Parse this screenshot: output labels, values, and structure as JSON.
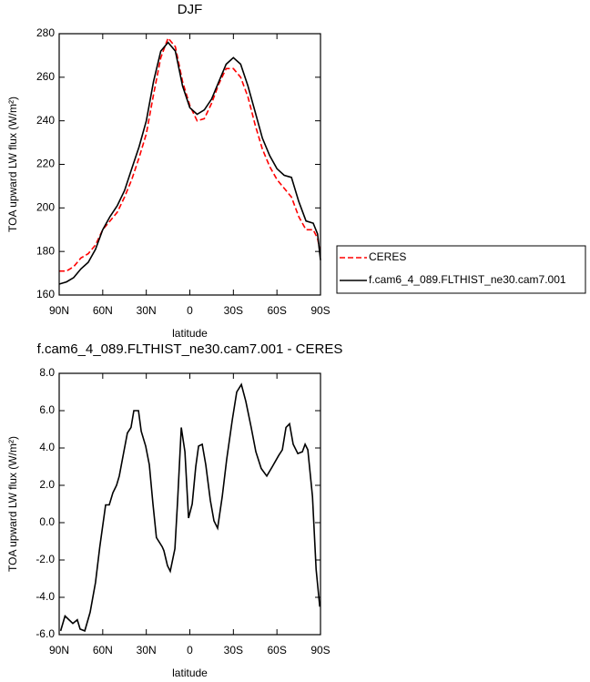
{
  "chart_data": [
    {
      "type": "line",
      "title": "DJF",
      "xlabel": "latitude",
      "ylabel": "TOA upward LW flux (W/m²)",
      "x": [
        90,
        85,
        80,
        75,
        70,
        65,
        60,
        55,
        50,
        45,
        40,
        35,
        30,
        25,
        20,
        15,
        10,
        5,
        0,
        -5,
        -10,
        -15,
        -20,
        -25,
        -30,
        -35,
        -40,
        -45,
        -50,
        -55,
        -60,
        -65,
        -70,
        -75,
        -80,
        -85,
        -88,
        -90
      ],
      "series": [
        {
          "name": "CERES",
          "color": "#ff0000",
          "dash": true,
          "values": [
            171,
            171,
            173,
            177,
            179,
            183,
            190,
            194,
            198,
            205,
            213,
            223,
            234,
            252,
            269,
            278,
            274,
            258,
            247,
            240,
            241,
            248,
            257,
            264,
            264,
            260,
            251,
            238,
            227,
            219,
            213,
            209,
            205,
            196,
            190,
            190,
            186,
            179
          ]
        },
        {
          "name": "f.cam6_4_089.FLTHIST_ne30.cam7.001",
          "color": "#000000",
          "dash": false,
          "values": [
            165,
            166,
            168,
            172,
            175,
            181,
            190,
            196,
            201,
            208,
            218,
            228,
            240,
            258,
            272,
            276,
            272,
            256,
            246,
            243,
            245,
            250,
            258,
            266,
            269,
            266,
            256,
            244,
            232,
            224,
            218,
            215,
            214,
            203,
            194,
            193,
            188,
            176
          ]
        }
      ],
      "xlim": [
        90,
        -90
      ],
      "xticks": [
        {
          "value": 90,
          "label": "90N"
        },
        {
          "value": 60,
          "label": "60N"
        },
        {
          "value": 30,
          "label": "30N"
        },
        0,
        {
          "value": -30,
          "label": "30S"
        },
        {
          "value": -60,
          "label": "60S"
        },
        {
          "value": -90,
          "label": "90S"
        }
      ],
      "ylim": [
        160,
        280
      ],
      "yticks": [
        160,
        180,
        200,
        220,
        240,
        260,
        280
      ],
      "legend": "right"
    },
    {
      "type": "line",
      "title": "f.cam6_4_089.FLTHIST_ne30.cam7.001 - CERES",
      "xlabel": "latitude",
      "ylabel": "TOA upward LW flux (W/m²)",
      "x": [
        89,
        86,
        80.6,
        77.5,
        75.6,
        72.4,
        68.7,
        65,
        62,
        58,
        55.5,
        53,
        50.5,
        48.6,
        45.5,
        43,
        40.5,
        38.6,
        35.4,
        33.5,
        30.4,
        27.9,
        25.4,
        23,
        19,
        17.9,
        15.4,
        13.5,
        10.3,
        8.4,
        5.9,
        3.4,
        0.9,
        -1.6,
        -4.1,
        -6,
        -8.5,
        -11,
        -14.1,
        -16.6,
        -19.1,
        -22.3,
        -25.4,
        -29.2,
        -32.3,
        -35.5,
        -38.6,
        -42.3,
        -45.5,
        -49.2,
        -53,
        -56.8,
        -61.2,
        -63.7,
        -66.2,
        -68.7,
        -71.2,
        -74.4,
        -77.5,
        -79.4,
        -81.3,
        -84.5,
        -87,
        -89.5
      ],
      "color": "#000000",
      "values": [
        -5.8,
        -5.0,
        -5.4,
        -5.2,
        -5.7,
        -5.8,
        -4.8,
        -3.2,
        -1.3,
        0.95,
        0.95,
        1.6,
        2.0,
        2.5,
        3.8,
        4.8,
        5.1,
        6.0,
        6.0,
        4.9,
        4.1,
        3.1,
        1.0,
        -0.8,
        -1.3,
        -1.5,
        -2.3,
        -2.6,
        -1.4,
        1.2,
        5.1,
        3.8,
        0.25,
        1.0,
        3.0,
        4.1,
        4.2,
        3.1,
        1.2,
        0.1,
        -0.3,
        1.4,
        3.4,
        5.5,
        7.0,
        7.4,
        6.5,
        5.1,
        3.8,
        2.9,
        2.5,
        3.0,
        3.6,
        3.9,
        5.1,
        5.3,
        4.2,
        3.7,
        3.8,
        4.2,
        3.9,
        1.4,
        -2.5,
        -4.5
      ],
      "xlim": [
        90,
        -90
      ],
      "xticks": [
        {
          "value": 90,
          "label": "90N"
        },
        {
          "value": 60,
          "label": "60N"
        },
        {
          "value": 30,
          "label": "30N"
        },
        0,
        {
          "value": -30,
          "label": "30S"
        },
        {
          "value": -60,
          "label": "60S"
        },
        {
          "value": -90,
          "label": "90S"
        }
      ],
      "ylim": [
        -6,
        8
      ],
      "yticks": [
        {
          "value": -6,
          "label": "-6.0"
        },
        {
          "value": -4,
          "label": "-4.0"
        },
        {
          "value": -2,
          "label": "-2.0"
        },
        {
          "value": 0,
          "label": "0.0"
        },
        {
          "value": 2,
          "label": "2.0"
        },
        {
          "value": 4,
          "label": "4.0"
        },
        {
          "value": 6,
          "label": "6.0"
        },
        {
          "value": 8,
          "label": "8.0"
        }
      ]
    }
  ]
}
